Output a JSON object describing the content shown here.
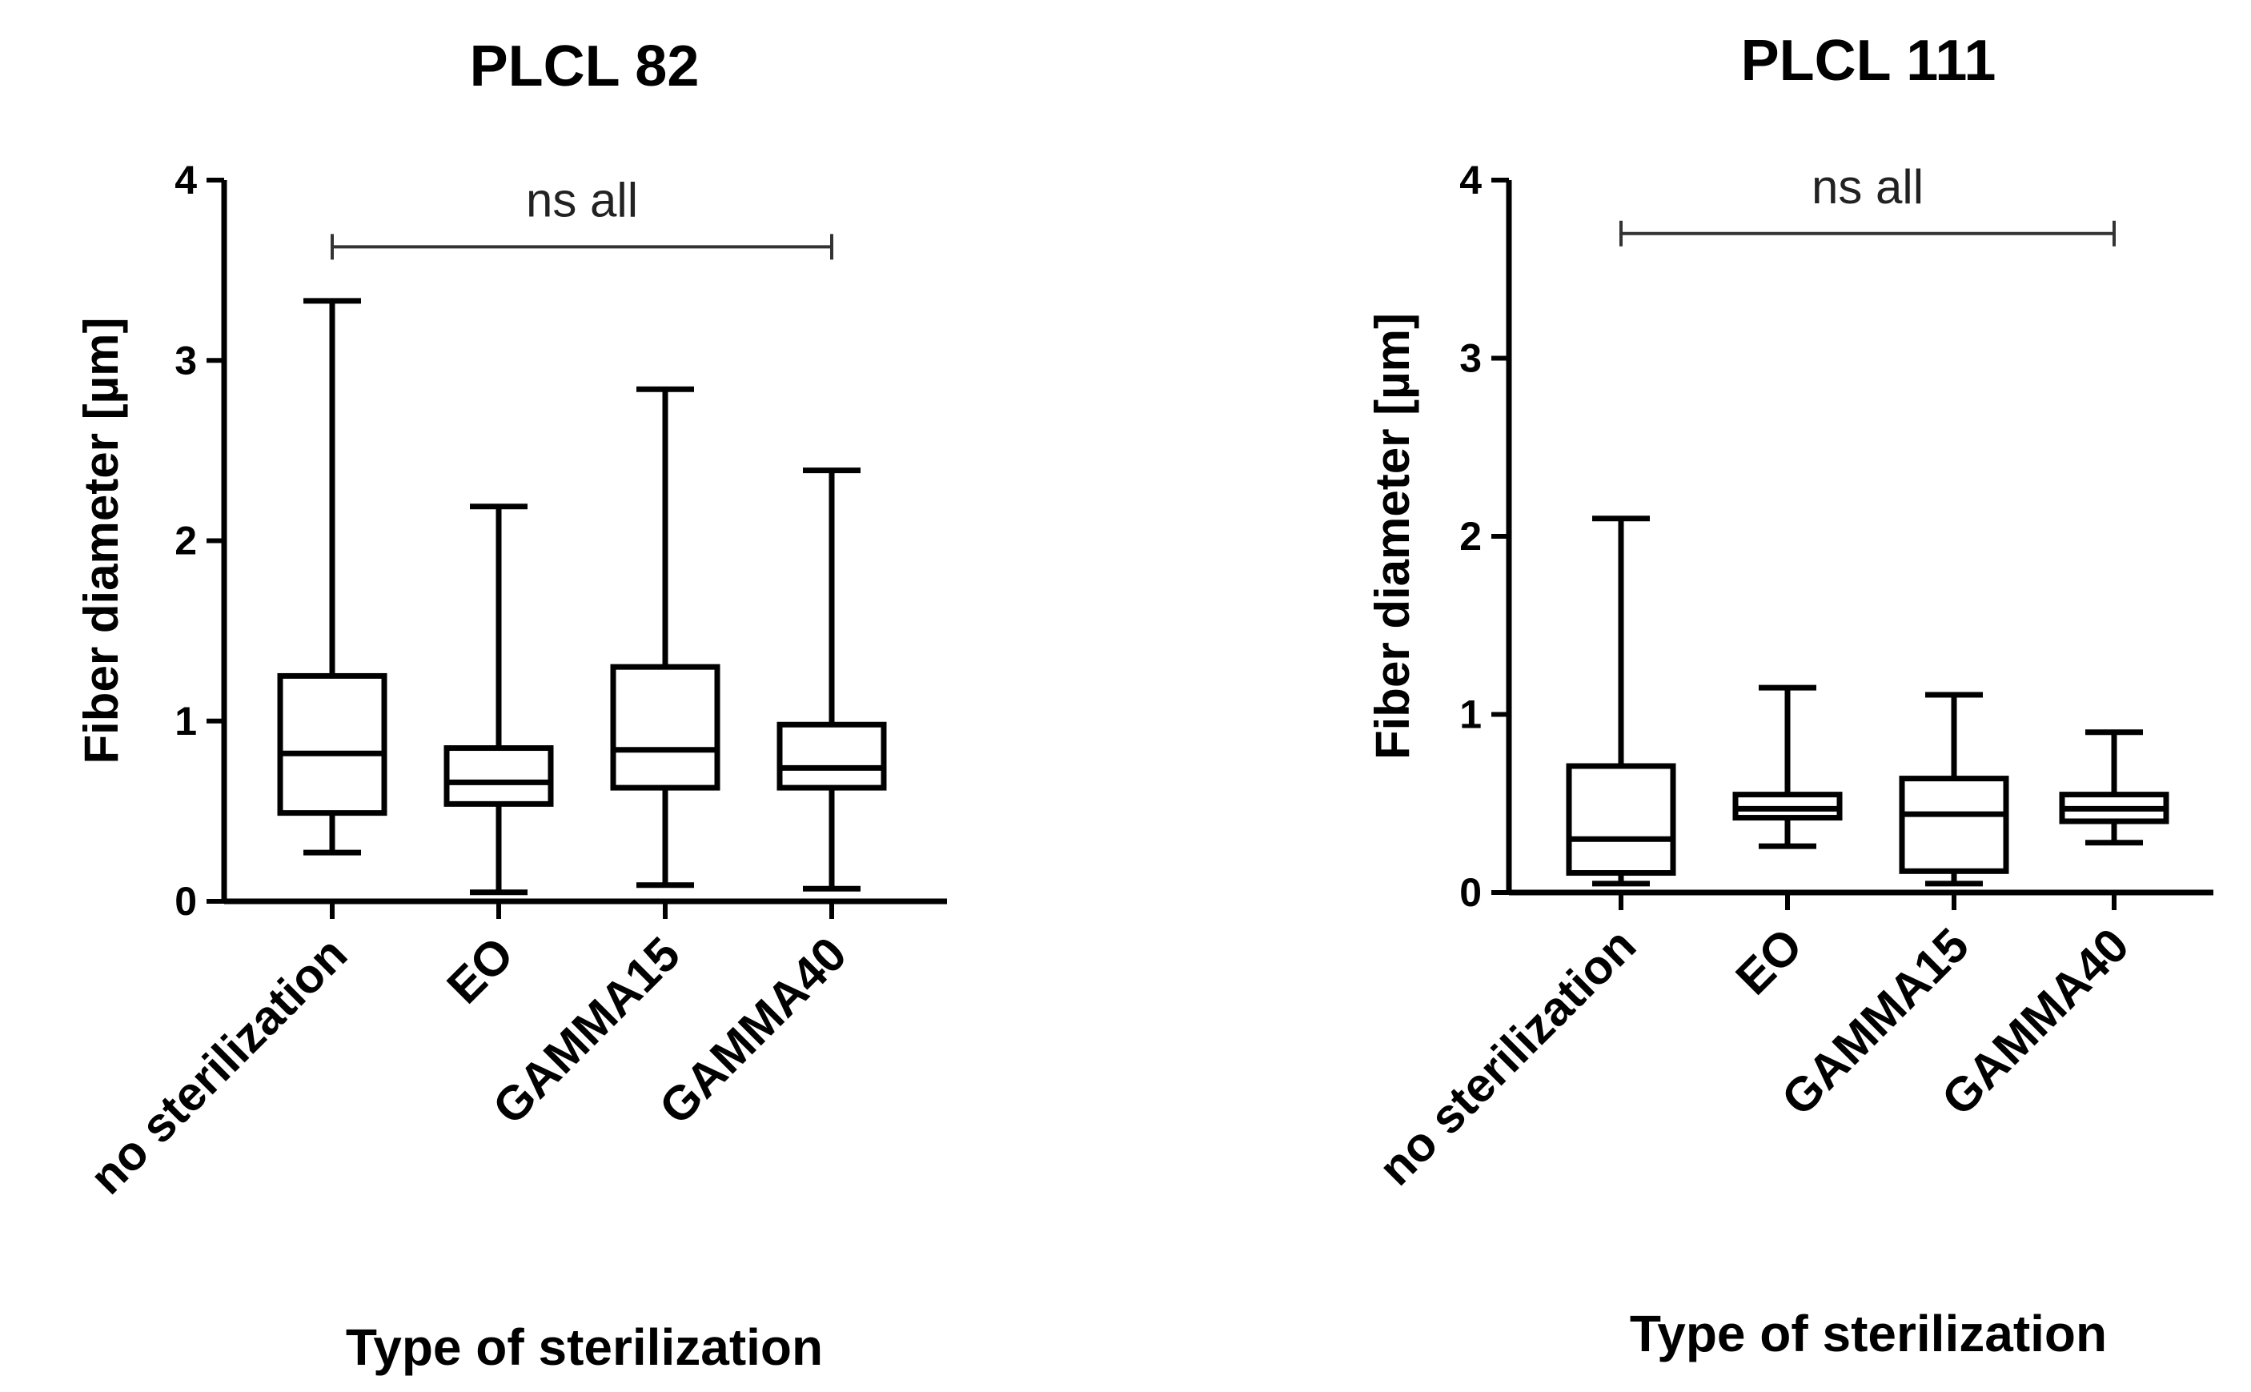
{
  "chart_data": [
    {
      "type": "box",
      "title": "PLCL 82",
      "xlabel": "Type of sterilization",
      "ylabel": "Fiber diameter [µm]",
      "ylim": [
        0,
        4
      ],
      "yticks": [
        0,
        1,
        2,
        3,
        4
      ],
      "categories": [
        "no sterilization",
        "EO",
        "GAMMA15",
        "GAMMA40"
      ],
      "boxes": [
        {
          "min": 0.27,
          "q1": 0.49,
          "median": 0.82,
          "q3": 1.25,
          "max": 3.33
        },
        {
          "min": 0.05,
          "q1": 0.54,
          "median": 0.66,
          "q3": 0.85,
          "max": 2.19
        },
        {
          "min": 0.09,
          "q1": 0.63,
          "median": 0.84,
          "q3": 1.3,
          "max": 2.84
        },
        {
          "min": 0.07,
          "q1": 0.63,
          "median": 0.74,
          "q3": 0.98,
          "max": 2.39
        }
      ],
      "annotation": {
        "text": "ns all",
        "from": "no sterilization",
        "to": "GAMMA40",
        "y": 3.63
      }
    },
    {
      "type": "box",
      "title": "PLCL 111",
      "xlabel": "Type of sterilization",
      "ylabel": "Fiber diameter [µm]",
      "ylim": [
        0,
        4
      ],
      "yticks": [
        0,
        1,
        2,
        3,
        4
      ],
      "categories": [
        "no sterilization",
        "EO",
        "GAMMA15",
        "GAMMA40"
      ],
      "boxes": [
        {
          "min": 0.05,
          "q1": 0.11,
          "median": 0.3,
          "q3": 0.71,
          "max": 2.1
        },
        {
          "min": 0.26,
          "q1": 0.42,
          "median": 0.47,
          "q3": 0.55,
          "max": 1.15
        },
        {
          "min": 0.05,
          "q1": 0.12,
          "median": 0.44,
          "q3": 0.64,
          "max": 1.11
        },
        {
          "min": 0.28,
          "q1": 0.4,
          "median": 0.47,
          "q3": 0.55,
          "max": 0.9
        }
      ],
      "annotation": {
        "text": "ns all",
        "from": "no sterilization",
        "to": "GAMMA40",
        "y": 3.7
      }
    }
  ]
}
